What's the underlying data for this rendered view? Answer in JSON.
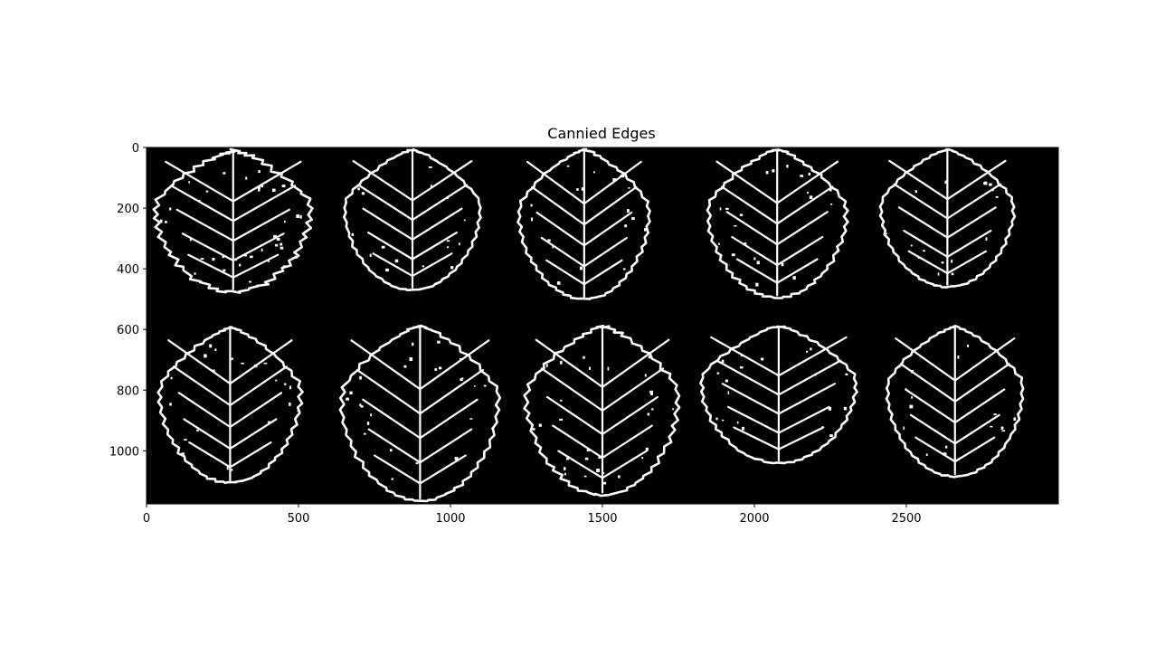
{
  "chart_data": {
    "type": "image",
    "title": "Cannied Edges",
    "xlabel": "",
    "ylabel": "",
    "xlim": [
      0,
      3000
    ],
    "ylim": [
      1175,
      0
    ],
    "x_ticks": [
      0,
      500,
      1000,
      1500,
      2000,
      2500
    ],
    "y_ticks": [
      0,
      200,
      400,
      600,
      800,
      1000
    ],
    "x_tick_labels": [
      "0",
      "500",
      "1000",
      "1500",
      "2000",
      "2500"
    ],
    "y_tick_labels": [
      "0",
      "200",
      "400",
      "600",
      "800",
      "1000"
    ],
    "background_color": "#000000",
    "edge_color": "#ffffff",
    "grid": false,
    "leaves": [
      {
        "row": 0,
        "col": 0,
        "cx": 285,
        "top": 10,
        "bottom": 475,
        "half_width": 285,
        "noise": 24
      },
      {
        "row": 0,
        "col": 1,
        "cx": 875,
        "top": 8,
        "bottom": 470,
        "half_width": 250,
        "noise": 10
      },
      {
        "row": 0,
        "col": 2,
        "cx": 1440,
        "top": 8,
        "bottom": 500,
        "half_width": 240,
        "noise": 12
      },
      {
        "row": 0,
        "col": 3,
        "cx": 2075,
        "top": 8,
        "bottom": 495,
        "half_width": 255,
        "noise": 14
      },
      {
        "row": 0,
        "col": 4,
        "cx": 2635,
        "top": 8,
        "bottom": 460,
        "half_width": 245,
        "noise": 10
      },
      {
        "row": 1,
        "col": 0,
        "cx": 275,
        "top": 595,
        "bottom": 1105,
        "half_width": 260,
        "noise": 14
      },
      {
        "row": 1,
        "col": 1,
        "cx": 900,
        "top": 590,
        "bottom": 1165,
        "half_width": 290,
        "noise": 16
      },
      {
        "row": 1,
        "col": 2,
        "cx": 1500,
        "top": 590,
        "bottom": 1145,
        "half_width": 280,
        "noise": 18
      },
      {
        "row": 1,
        "col": 3,
        "cx": 2080,
        "top": 590,
        "bottom": 1040,
        "half_width": 285,
        "noise": 12
      },
      {
        "row": 1,
        "col": 4,
        "cx": 2660,
        "top": 590,
        "bottom": 1085,
        "half_width": 250,
        "noise": 10
      }
    ]
  }
}
